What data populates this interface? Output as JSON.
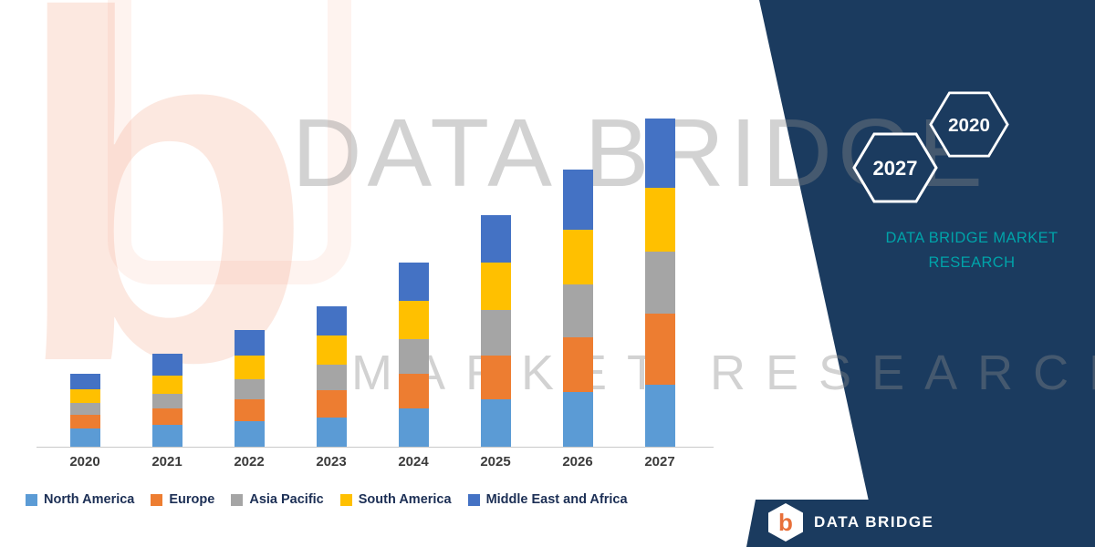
{
  "watermark": {
    "line1": "DATA BRIDGE",
    "line2": "MARKET RESEARCH",
    "logo_letter": "b"
  },
  "right_panel": {
    "hexagons": [
      {
        "year": "2027"
      },
      {
        "year": "2020"
      }
    ],
    "brand_text_line1": "DATA BRIDGE MARKET",
    "brand_text_line2": "RESEARCH",
    "colors": {
      "panel_navy": "#1B3B5F",
      "teal": "#00A3A9",
      "hexagon_stroke": "#FFFFFF"
    }
  },
  "footer": {
    "logo_text": "DATA BRIDGE",
    "logo_letter": "b"
  },
  "chart_data": {
    "type": "bar",
    "stacked": true,
    "title": "",
    "xlabel": "",
    "ylabel": "",
    "y_axis_visible": false,
    "gridlines": false,
    "legend_position": "bottom",
    "units": "relative market size (no value axis shown; values estimated from bar heights)",
    "categories": [
      "2020",
      "2021",
      "2022",
      "2023",
      "2024",
      "2025",
      "2026",
      "2027"
    ],
    "series": [
      {
        "name": "North America",
        "color": "#5B9BD5",
        "values": [
          20,
          24,
          28,
          32,
          42,
          52,
          60,
          68
        ]
      },
      {
        "name": "Europe",
        "color": "#ED7D31",
        "values": [
          15,
          18,
          24,
          30,
          38,
          48,
          60,
          78
        ]
      },
      {
        "name": "Asia Pacific",
        "color": "#A5A5A5",
        "values": [
          13,
          16,
          22,
          28,
          38,
          50,
          58,
          68
        ]
      },
      {
        "name": "South America",
        "color": "#FFC000",
        "values": [
          15,
          20,
          26,
          32,
          42,
          52,
          60,
          70
        ]
      },
      {
        "name": "Middle East and Africa",
        "color": "#4472C4",
        "values": [
          17,
          24,
          28,
          32,
          42,
          52,
          66,
          76
        ]
      }
    ],
    "totals": [
      80,
      102,
      128,
      154,
      202,
      254,
      304,
      360
    ],
    "ylim": [
      0,
      400
    ]
  }
}
